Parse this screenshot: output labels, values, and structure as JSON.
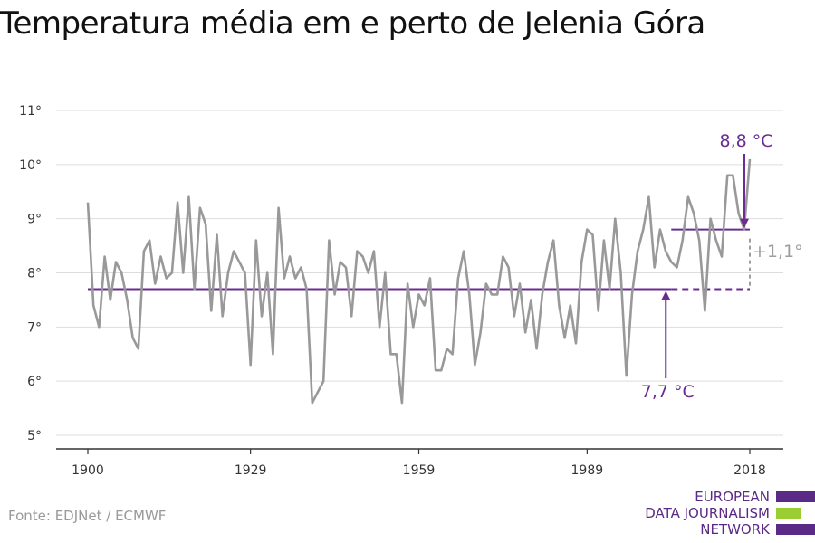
{
  "title": "Temperatura média em e perto de Jelenia Góra",
  "source": "Fonte: EDJNet / ECMWF",
  "logo": {
    "lines": [
      "EUROPEAN",
      "DATA JOURNALISM",
      "NETWORK"
    ],
    "colors": {
      "purple": "#5b2a86",
      "green": "#9acd32"
    }
  },
  "colors": {
    "series": "#999999",
    "accent": "#6a2c91",
    "delta": "#9e9e9e",
    "grid": "#dddddd",
    "axis": "#333333"
  },
  "chart_data": {
    "type": "line",
    "title": "Temperatura média em e perto de Jelenia Góra",
    "xlabel": "",
    "ylabel": "",
    "xlim": [
      1900,
      2018
    ],
    "ylim": [
      5,
      11
    ],
    "grid": true,
    "x_ticks": [
      1900,
      1929,
      1959,
      1989,
      2018
    ],
    "y_ticks": [
      5,
      6,
      7,
      8,
      9,
      10,
      11
    ],
    "y_tick_labels": [
      "5°",
      "6°",
      "7°",
      "8°",
      "9°",
      "10°",
      "11°"
    ],
    "series": [
      {
        "x": [
          1900,
          1901,
          1902,
          1903,
          1904,
          1905,
          1906,
          1907,
          1908,
          1909,
          1910,
          1911,
          1912,
          1913,
          1914,
          1915,
          1916,
          1917,
          1918,
          1919,
          1920,
          1921,
          1922,
          1923,
          1924,
          1925,
          1926,
          1927,
          1928,
          1929,
          1930,
          1931,
          1932,
          1933,
          1934,
          1935,
          1936,
          1937,
          1938,
          1939,
          1940,
          1941,
          1942,
          1943,
          1944,
          1945,
          1946,
          1947,
          1948,
          1949,
          1950,
          1951,
          1952,
          1953,
          1954,
          1955,
          1956,
          1957,
          1958,
          1959,
          1960,
          1961,
          1962,
          1963,
          1964,
          1965,
          1966,
          1967,
          1968,
          1969,
          1970,
          1971,
          1972,
          1973,
          1974,
          1975,
          1976,
          1977,
          1978,
          1979,
          1980,
          1981,
          1982,
          1983,
          1984,
          1985,
          1986,
          1987,
          1988,
          1989,
          1990,
          1991,
          1992,
          1993,
          1994,
          1995,
          1996,
          1997,
          1998,
          1999,
          2000,
          2001,
          2002,
          2003,
          2004,
          2005,
          2006,
          2007,
          2008,
          2009,
          2010,
          2011,
          2012,
          2013,
          2014,
          2015,
          2016,
          2017,
          2018
        ],
        "values": [
          9.3,
          7.4,
          7.0,
          8.3,
          7.5,
          8.2,
          8.0,
          7.5,
          6.8,
          6.6,
          8.4,
          8.6,
          7.8,
          8.3,
          7.9,
          8.0,
          9.3,
          8.0,
          9.4,
          7.7,
          9.2,
          8.9,
          7.3,
          8.7,
          7.2,
          8.0,
          8.4,
          8.2,
          8.0,
          6.3,
          8.6,
          7.2,
          8.0,
          6.5,
          9.2,
          7.9,
          8.3,
          7.9,
          8.1,
          7.7,
          5.6,
          5.8,
          6.0,
          8.6,
          7.6,
          8.2,
          8.1,
          7.2,
          8.4,
          8.3,
          8.0,
          8.4,
          7.0,
          8.0,
          6.5,
          6.5,
          5.6,
          7.8,
          7.0,
          7.6,
          7.4,
          7.9,
          6.2,
          6.2,
          6.6,
          6.5,
          7.9,
          8.4,
          7.6,
          6.3,
          6.9,
          7.8,
          7.6,
          7.6,
          8.3,
          8.1,
          7.2,
          7.8,
          6.9,
          7.5,
          6.6,
          7.6,
          8.2,
          8.6,
          7.4,
          6.8,
          7.4,
          6.7,
          8.2,
          8.8,
          8.7,
          7.3,
          8.6,
          7.7,
          9.0,
          8.0,
          6.1,
          7.6,
          8.4,
          8.8,
          9.4,
          8.1,
          8.8,
          8.4,
          8.2,
          8.1,
          8.6,
          9.4,
          9.1,
          8.6,
          7.3,
          9.0,
          8.6,
          8.3,
          9.8,
          9.8,
          9.1,
          8.8,
          10.1
        ]
      }
    ],
    "annotations": [
      {
        "label": "7,7 °C",
        "value": 7.7,
        "from": 1900,
        "to": 2004
      },
      {
        "label": "8,8 °C",
        "value": 8.8,
        "from": 2004,
        "to": 2018
      },
      {
        "label": "+1,1°"
      }
    ]
  }
}
